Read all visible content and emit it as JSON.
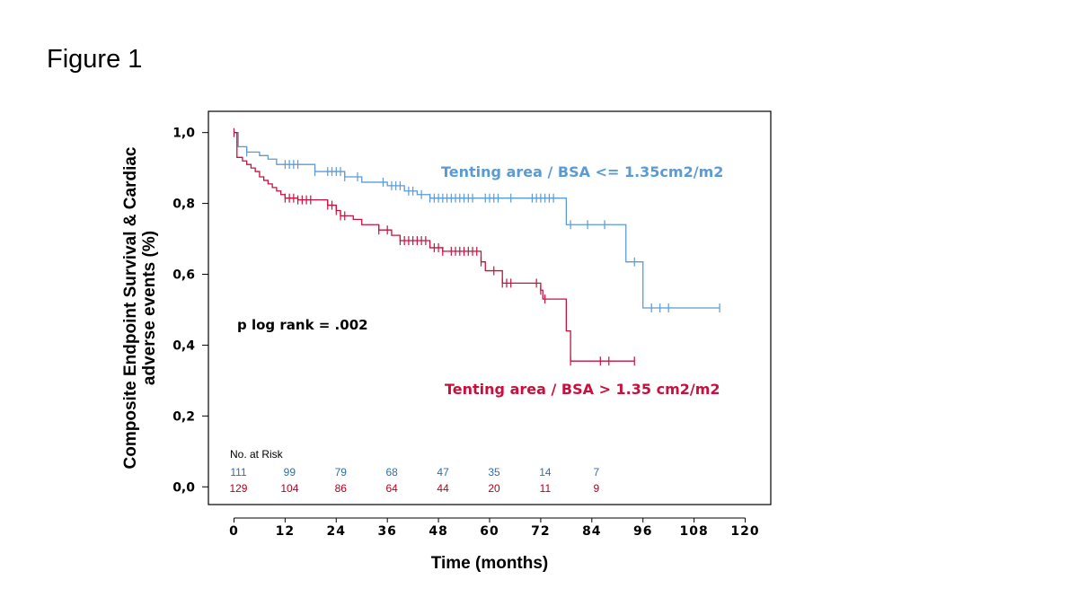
{
  "figure_label": "Figure 1",
  "colors": {
    "series_low": "#5b9bd5",
    "series_high": "#c8103e",
    "risk_low": "#2e6fad",
    "risk_high": "#b3001e"
  },
  "chart_data": {
    "type": "line",
    "step": true,
    "xlabel": "Time (months)",
    "ylabel_line1": "Composite Endpoint Survival & Cardiac",
    "ylabel_line2": "adverse events (%)",
    "xlim": [
      -6,
      126
    ],
    "ylim": [
      -0.05,
      1.06
    ],
    "x_ticks": [
      "0",
      "12",
      "24",
      "36",
      "48",
      "60",
      "72",
      "84",
      "96",
      "108",
      "120"
    ],
    "y_ticks": [
      "0,0",
      "0,2",
      "0,4",
      "0,6",
      "0,8",
      "1,0"
    ],
    "annotation": "p log rank = .002",
    "series": [
      {
        "name": "Tenting area / BSA <= 1.35cm2/m2",
        "color": "#5b9bd5",
        "points": [
          [
            0,
            1.0
          ],
          [
            1,
            0.96
          ],
          [
            3,
            0.945
          ],
          [
            6,
            0.935
          ],
          [
            8,
            0.925
          ],
          [
            10,
            0.91
          ],
          [
            19,
            0.89
          ],
          [
            26,
            0.875
          ],
          [
            30,
            0.86
          ],
          [
            36,
            0.85
          ],
          [
            40,
            0.835
          ],
          [
            43,
            0.825
          ],
          [
            46,
            0.815
          ],
          [
            78,
            0.74
          ],
          [
            92,
            0.635
          ],
          [
            96,
            0.505
          ],
          [
            114,
            0.505
          ]
        ],
        "censor_x": [
          3,
          12,
          13,
          14,
          15,
          19,
          22,
          23,
          24,
          25,
          26,
          29,
          35,
          37,
          38,
          39,
          41,
          42,
          44,
          46,
          47,
          48,
          49,
          50,
          51,
          52,
          53,
          54,
          55,
          56,
          59,
          60,
          61,
          62,
          65,
          70,
          71,
          72,
          73,
          74,
          75,
          79,
          83,
          87,
          94,
          98,
          100,
          102,
          114
        ]
      },
      {
        "name": "Tenting area / BSA > 1.35 cm2/m2",
        "color": "#c8103e",
        "points": [
          [
            0,
            1.0
          ],
          [
            0.7,
            0.93
          ],
          [
            2,
            0.92
          ],
          [
            3,
            0.91
          ],
          [
            4,
            0.9
          ],
          [
            5,
            0.89
          ],
          [
            6,
            0.875
          ],
          [
            7,
            0.865
          ],
          [
            8,
            0.855
          ],
          [
            9,
            0.845
          ],
          [
            10,
            0.835
          ],
          [
            11,
            0.825
          ],
          [
            12,
            0.815
          ],
          [
            15,
            0.81
          ],
          [
            22,
            0.795
          ],
          [
            24,
            0.78
          ],
          [
            25,
            0.765
          ],
          [
            28,
            0.755
          ],
          [
            30,
            0.74
          ],
          [
            34,
            0.725
          ],
          [
            37,
            0.71
          ],
          [
            39,
            0.695
          ],
          [
            46,
            0.675
          ],
          [
            49,
            0.665
          ],
          [
            58,
            0.635
          ],
          [
            59,
            0.61
          ],
          [
            63,
            0.575
          ],
          [
            72,
            0.555
          ],
          [
            72.5,
            0.53
          ],
          [
            78,
            0.44
          ],
          [
            79,
            0.355
          ],
          [
            94,
            0.355
          ]
        ],
        "censor_x": [
          0,
          12,
          13,
          14,
          15,
          16,
          17,
          18,
          22,
          23,
          24,
          25,
          26,
          34,
          36,
          39,
          40,
          41,
          42,
          43,
          44,
          45,
          47,
          48,
          49,
          51,
          52,
          53,
          54,
          55,
          56,
          57,
          58,
          61,
          63,
          64,
          65,
          71,
          72,
          73,
          79,
          86,
          88,
          94
        ]
      }
    ],
    "at_risk": {
      "title": "No. at Risk",
      "times": [
        0,
        12,
        24,
        36,
        48,
        60,
        72,
        84
      ],
      "low": [
        "111",
        "99",
        "79",
        "68",
        "47",
        "35",
        "14",
        "7"
      ],
      "high": [
        "129",
        "104",
        "86",
        "64",
        "44",
        "20",
        "11",
        "9"
      ]
    }
  }
}
